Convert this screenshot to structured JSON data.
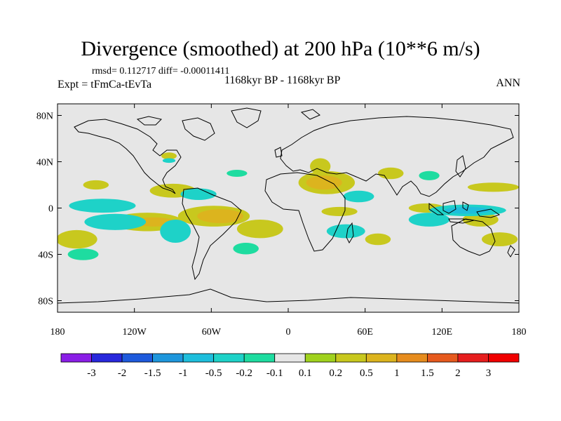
{
  "chart_data": {
    "type": "heatmap",
    "title": "Divergence (smoothed) at 200 hPa (10**6 m/s)",
    "stats_text": "rmsd= 0.112717  diff= -0.00011411",
    "experiment_text": "Expt = tFmCa-tEvTa",
    "period_text": "1168kyr BP - 1168kyr BP",
    "season_text": "ANN",
    "x_axis": {
      "range": [
        -180,
        180
      ],
      "ticks": [
        -180,
        -120,
        -60,
        0,
        60,
        120,
        180
      ],
      "tick_labels": [
        "180",
        "120W",
        "60W",
        "0",
        "60E",
        "120E",
        "180"
      ]
    },
    "y_axis": {
      "range": [
        -90,
        90
      ],
      "ticks": [
        80,
        40,
        0,
        -40,
        -80
      ],
      "tick_labels": [
        "80N",
        "40N",
        "0",
        "40S",
        "80S"
      ]
    },
    "colorbar": {
      "labels": [
        "-3",
        "-2",
        "-1.5",
        "-1",
        "-0.5",
        "-0.2",
        "-0.1",
        "0.1",
        "0.2",
        "0.5",
        "1",
        "1.5",
        "2",
        "3"
      ],
      "colors": [
        "#8a1ee6",
        "#2828dc",
        "#1e5adc",
        "#1e96dc",
        "#1ebedc",
        "#1ed2c8",
        "#1edca0",
        "#e6e6e6",
        "#a0d21e",
        "#c8c81e",
        "#dcb41e",
        "#e68c1e",
        "#e65a1e",
        "#e61e1e",
        "#f00000"
      ]
    },
    "positive_regions": [
      {
        "lon": 30,
        "lat": 22,
        "rlon": 22,
        "rlat": 10,
        "level": "0.2"
      },
      {
        "lon": 28,
        "lat": 22,
        "rlon": 14,
        "rlat": 6,
        "level": "0.5"
      },
      {
        "lon": 25,
        "lat": 36,
        "rlon": 8,
        "rlat": 7,
        "level": "0.2"
      },
      {
        "lon": -58,
        "lat": -7,
        "rlon": 28,
        "rlat": 9,
        "level": "0.2"
      },
      {
        "lon": -53,
        "lat": -7,
        "rlon": 18,
        "rlat": 6,
        "level": "0.5"
      },
      {
        "lon": -110,
        "lat": -12,
        "rlon": 28,
        "rlat": 8,
        "level": "0.2"
      },
      {
        "lon": -105,
        "lat": -12,
        "rlon": 16,
        "rlat": 4,
        "level": "0.5"
      },
      {
        "lon": -165,
        "lat": -27,
        "rlon": 16,
        "rlat": 8,
        "level": "0.2"
      },
      {
        "lon": -90,
        "lat": 15,
        "rlon": 18,
        "rlat": 6,
        "level": "0.2"
      },
      {
        "lon": -22,
        "lat": -18,
        "rlon": 18,
        "rlat": 8,
        "level": "0.2"
      },
      {
        "lon": 40,
        "lat": -3,
        "rlon": 14,
        "rlat": 4,
        "level": "0.2"
      },
      {
        "lon": 108,
        "lat": 0,
        "rlon": 14,
        "rlat": 4,
        "level": "0.2"
      },
      {
        "lon": 150,
        "lat": -10,
        "rlon": 14,
        "rlat": 6,
        "level": "0.2"
      },
      {
        "lon": 165,
        "lat": -27,
        "rlon": 14,
        "rlat": 6,
        "level": "0.2"
      },
      {
        "lon": 160,
        "lat": 18,
        "rlon": 20,
        "rlat": 4,
        "level": "0.2"
      },
      {
        "lon": 80,
        "lat": 30,
        "rlon": 10,
        "rlat": 5,
        "level": "0.2"
      },
      {
        "lon": 70,
        "lat": -27,
        "rlon": 10,
        "rlat": 5,
        "level": "0.2"
      },
      {
        "lon": -150,
        "lat": 20,
        "rlon": 10,
        "rlat": 4,
        "level": "0.2"
      },
      {
        "lon": -93,
        "lat": 45,
        "rlon": 6,
        "rlat": 3,
        "level": "0.2"
      }
    ],
    "negative_regions": [
      {
        "lon": -145,
        "lat": 2,
        "rlon": 26,
        "rlat": 6,
        "level": "-0.2"
      },
      {
        "lon": -135,
        "lat": -12,
        "rlon": 24,
        "rlat": 7,
        "level": "-0.2"
      },
      {
        "lon": -88,
        "lat": -20,
        "rlon": 12,
        "rlat": 10,
        "level": "-0.2"
      },
      {
        "lon": -70,
        "lat": 12,
        "rlon": 14,
        "rlat": 5,
        "level": "-0.2"
      },
      {
        "lon": 45,
        "lat": -20,
        "rlon": 15,
        "rlat": 6,
        "level": "-0.2"
      },
      {
        "lon": 55,
        "lat": 10,
        "rlon": 12,
        "rlat": 5,
        "level": "-0.2"
      },
      {
        "lon": 140,
        "lat": -2,
        "rlon": 30,
        "rlat": 5,
        "level": "-0.2"
      },
      {
        "lon": 140,
        "lat": -2,
        "rlon": 18,
        "rlat": 3,
        "level": "-0.5"
      },
      {
        "lon": 110,
        "lat": -10,
        "rlon": 16,
        "rlat": 6,
        "level": "-0.2"
      },
      {
        "lon": -40,
        "lat": 30,
        "rlon": 8,
        "rlat": 3,
        "level": "-0.1"
      },
      {
        "lon": -160,
        "lat": -40,
        "rlon": 12,
        "rlat": 5,
        "level": "-0.1"
      },
      {
        "lon": -33,
        "lat": -35,
        "rlon": 10,
        "rlat": 5,
        "level": "-0.1"
      },
      {
        "lon": 110,
        "lat": 28,
        "rlon": 8,
        "rlat": 4,
        "level": "-0.1"
      },
      {
        "lon": -93,
        "lat": 41,
        "rlon": 5,
        "rlat": 2,
        "level": "-0.2"
      }
    ]
  }
}
